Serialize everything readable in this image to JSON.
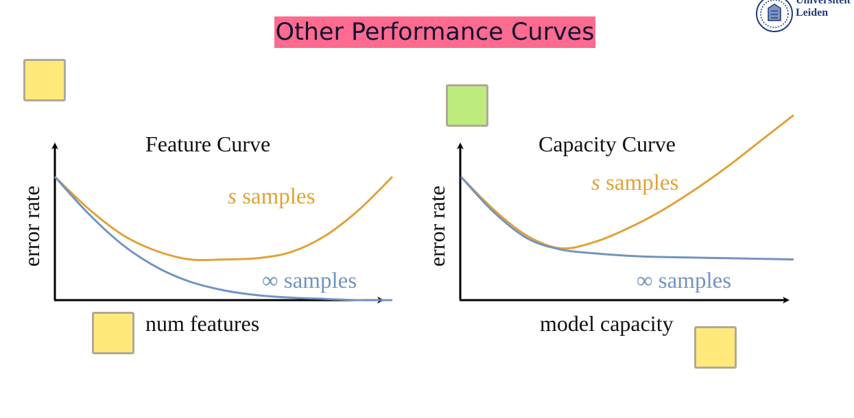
{
  "slide": {
    "title": "Other Performance Curves",
    "logo": {
      "line1": "Universiteit",
      "line2": "Leiden"
    },
    "colors": {
      "title_bg": "#ff6a8f",
      "finite_series": "#e0a236",
      "infinite_series": "#7193c1",
      "note_yellow": "#ffe97a",
      "note_green": "#bdeb7d"
    }
  },
  "chart_data": [
    {
      "type": "line",
      "title": "Feature Curve",
      "xlabel": "num features",
      "ylabel": "error rate",
      "grid": false,
      "ticks": false,
      "series": [
        {
          "name_var": "s",
          "name_rest": " samples",
          "color": "#e0a236",
          "x": [
            0,
            0.1,
            0.2,
            0.3,
            0.4,
            0.5,
            0.6,
            0.7,
            0.8,
            0.9,
            1.0
          ],
          "y": [
            1.0,
            0.74,
            0.53,
            0.4,
            0.33,
            0.33,
            0.34,
            0.39,
            0.52,
            0.73,
            1.0
          ]
        },
        {
          "name_var": "∞",
          "name_rest": " samples",
          "color": "#7193c1",
          "x": [
            0,
            0.1,
            0.2,
            0.3,
            0.4,
            0.5,
            0.6,
            0.7,
            0.8,
            0.9,
            1.0
          ],
          "y": [
            1.0,
            0.7,
            0.45,
            0.27,
            0.15,
            0.08,
            0.04,
            0.02,
            0.01,
            0.0,
            0.0
          ]
        }
      ]
    },
    {
      "type": "line",
      "title": "Capacity Curve",
      "xlabel": "model capacity",
      "ylabel": "error rate",
      "grid": false,
      "ticks": false,
      "series": [
        {
          "name_var": "s",
          "name_rest": " samples",
          "color": "#e0a236",
          "x": [
            0,
            0.1,
            0.2,
            0.3,
            0.4,
            0.5,
            0.6,
            0.7,
            0.8,
            0.9,
            1.0
          ],
          "y": [
            1.0,
            0.73,
            0.52,
            0.42,
            0.47,
            0.58,
            0.72,
            0.89,
            1.08,
            1.29,
            1.5
          ]
        },
        {
          "name_var": "∞",
          "name_rest": " samples",
          "color": "#7193c1",
          "x": [
            0,
            0.1,
            0.2,
            0.3,
            0.4,
            0.5,
            0.6,
            0.7,
            0.8,
            0.9,
            1.0
          ],
          "y": [
            1.0,
            0.71,
            0.5,
            0.41,
            0.38,
            0.36,
            0.35,
            0.345,
            0.34,
            0.335,
            0.33
          ]
        }
      ]
    }
  ]
}
